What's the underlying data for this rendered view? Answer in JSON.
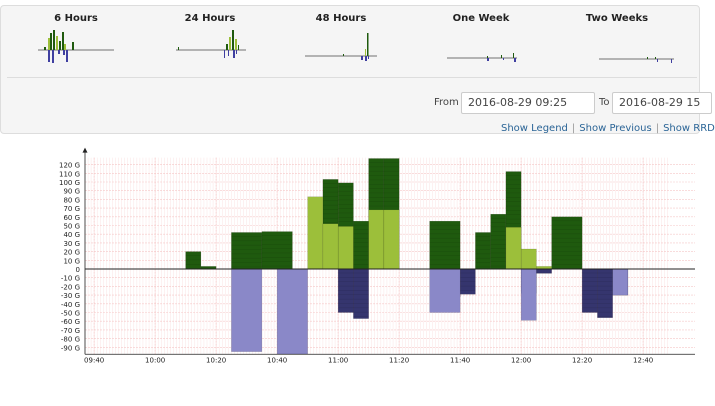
{
  "presets": [
    {
      "label": "6 Hours"
    },
    {
      "label": "24 Hours"
    },
    {
      "label": "48 Hours"
    },
    {
      "label": "One Week"
    },
    {
      "label": "Two Weeks"
    }
  ],
  "range": {
    "from_label": "From",
    "from_value": "2016-08-29 09:25",
    "to_label": "To",
    "to_value": "2016-08-29 15"
  },
  "links": {
    "show_legend": "Show Legend",
    "show_previous": "Show Previous",
    "show_rrd": "Show RRD"
  },
  "colors": {
    "in_dark": "#1f5a0e",
    "in_light": "#9cbf3a",
    "out_dark": "#35356e",
    "out_light": "#8a88c8",
    "grid": "#f5c8c8"
  },
  "chart_data": {
    "type": "bar",
    "y_ticks": [
      "120 G",
      "110 G",
      "100 G",
      "90 G",
      "80 G",
      "70 G",
      "60 G",
      "50 G",
      "40 G",
      "30 G",
      "20 G",
      "10 G",
      "0",
      "-10 G",
      "-20 G",
      "-30 G",
      "-40 G",
      "-50 G",
      "-60 G",
      "-70 G",
      "-80 G",
      "-90 G"
    ],
    "x_ticks": [
      "09:40",
      "10:00",
      "10:20",
      "10:40",
      "11:00",
      "11:20",
      "11:40",
      "12:00",
      "12:20",
      "12:40"
    ],
    "ylim": [
      -98,
      128
    ],
    "x_range_minutes": [
      577,
      768
    ],
    "series": [
      {
        "key": "in_dark",
        "bars": [
          [
            610,
            615,
            20
          ],
          [
            615,
            620,
            3
          ],
          [
            625,
            635,
            42
          ],
          [
            635,
            645,
            43
          ],
          [
            655,
            660,
            103
          ],
          [
            660,
            665,
            99
          ],
          [
            665,
            670,
            55
          ],
          [
            670,
            675,
            127
          ],
          [
            675,
            680,
            127
          ],
          [
            690,
            700,
            55
          ],
          [
            705,
            710,
            42
          ],
          [
            710,
            715,
            63
          ],
          [
            715,
            720,
            112
          ],
          [
            730,
            740,
            60
          ]
        ]
      },
      {
        "key": "in_light",
        "bars": [
          [
            650,
            655,
            83
          ],
          [
            655,
            660,
            52
          ],
          [
            660,
            665,
            49
          ],
          [
            670,
            675,
            68
          ],
          [
            675,
            680,
            68
          ],
          [
            715,
            720,
            48
          ],
          [
            720,
            725,
            23
          ],
          [
            725,
            730,
            3
          ]
        ]
      },
      {
        "key": "out_dark",
        "bars": [
          [
            660,
            665,
            -50
          ],
          [
            665,
            670,
            -57
          ],
          [
            695,
            700,
            -32
          ],
          [
            700,
            705,
            -29
          ],
          [
            720,
            725,
            -28
          ],
          [
            725,
            730,
            -5
          ],
          [
            740,
            745,
            -50
          ],
          [
            745,
            750,
            -56
          ],
          [
            750,
            755,
            -30
          ]
        ]
      },
      {
        "key": "out_light",
        "bars": [
          [
            625,
            635,
            -95
          ],
          [
            640,
            650,
            -98
          ],
          [
            690,
            700,
            -50
          ],
          [
            720,
            725,
            -59
          ],
          [
            750,
            755,
            -30
          ]
        ]
      }
    ]
  }
}
